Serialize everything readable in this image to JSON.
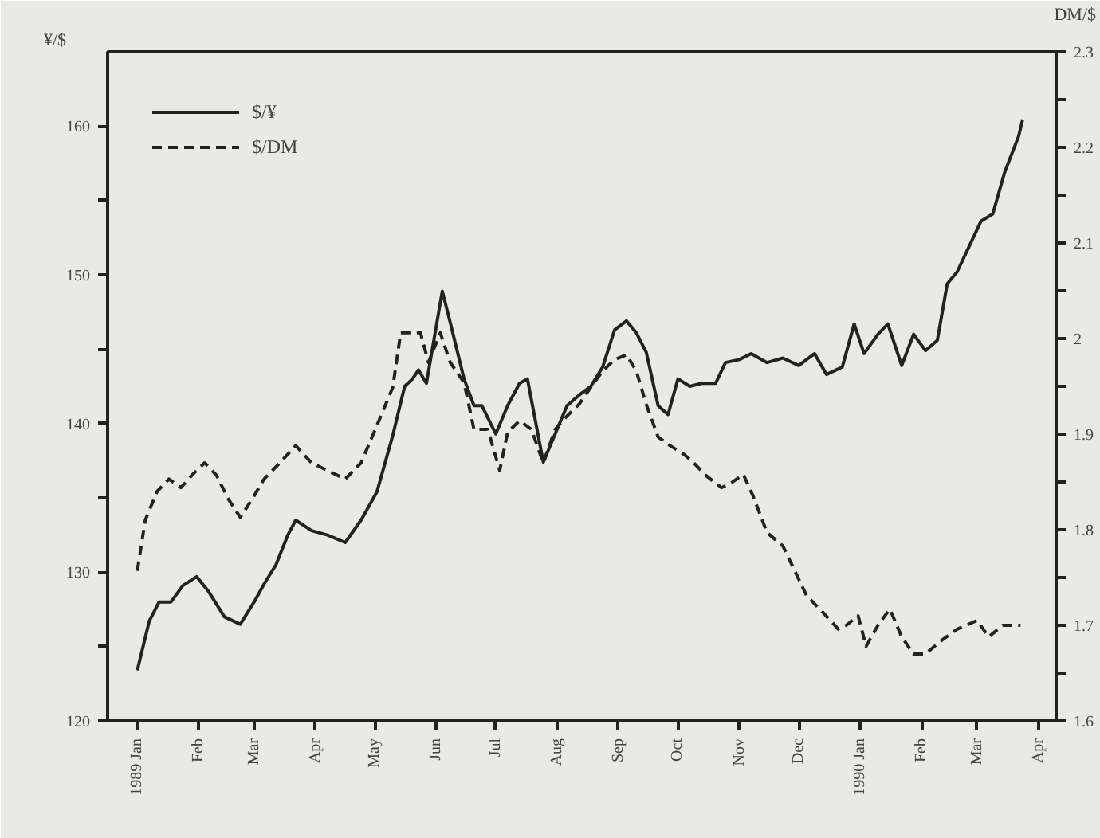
{
  "chart_data": {
    "type": "line",
    "ylabel": "¥/$",
    "y2label": "DM/$",
    "xlim": [
      "1988-12-17",
      "1990-04-10"
    ],
    "xticks": [
      {
        "value": "1989-01-01",
        "label": "1989 Jan"
      },
      {
        "value": "1989-02-01",
        "label": "Feb"
      },
      {
        "value": "1989-03-01",
        "label": "Mar"
      },
      {
        "value": "1989-04-01",
        "label": "Apr"
      },
      {
        "value": "1989-05-01",
        "label": "May"
      },
      {
        "value": "1989-06-01",
        "label": "Jun"
      },
      {
        "value": "1989-07-01",
        "label": "Jul"
      },
      {
        "value": "1989-08-01",
        "label": "Aug"
      },
      {
        "value": "1989-09-01",
        "label": "Sep"
      },
      {
        "value": "1989-10-01",
        "label": "Oct"
      },
      {
        "value": "1989-11-01",
        "label": "Nov"
      },
      {
        "value": "1989-12-01",
        "label": "Dec"
      },
      {
        "value": "1990-01-01",
        "label": "1990 Jan"
      },
      {
        "value": "1990-02-01",
        "label": "Feb"
      },
      {
        "value": "1990-03-01",
        "label": "Mar"
      },
      {
        "value": "1990-04-01",
        "label": "Apr"
      }
    ],
    "ylim": [
      120,
      165
    ],
    "yticks": [
      120,
      {
        "value": 125,
        "label": null
      },
      130,
      {
        "value": 135,
        "label": null
      },
      140,
      {
        "value": 145,
        "label": null
      },
      150,
      {
        "value": 155,
        "label": null
      },
      160
    ],
    "y2lim": [
      1.6,
      2.3
    ],
    "y2ticks": [
      1.6,
      {
        "value": 1.65,
        "label": null
      },
      1.7,
      {
        "value": 1.75,
        "label": null
      },
      1.8,
      {
        "value": 1.85,
        "label": null
      },
      1.9,
      {
        "value": 1.95,
        "label": null
      },
      2,
      {
        "value": 2.05,
        "label": null
      },
      2.1,
      {
        "value": 2.15,
        "label": null
      },
      2.2,
      {
        "value": 2.25,
        "label": null
      },
      2.3
    ],
    "grid": false,
    "legend": "top left",
    "marker": "none",
    "series": [
      {
        "name": "$/¥",
        "color": "#222222",
        "line_style": "solid",
        "x": [
          "1989-01-01",
          "1989-01-07",
          "1989-01-12",
          "1989-01-18",
          "1989-01-24",
          "1989-01-31",
          "1989-02-06",
          "1989-02-14",
          "1989-02-22",
          "1989-03-01",
          "1989-03-06",
          "1989-03-12",
          "1989-03-18",
          "1989-03-22",
          "1989-03-30",
          "1989-04-07",
          "1989-04-16",
          "1989-04-24",
          "1989-05-02",
          "1989-05-10",
          "1989-05-16",
          "1989-05-20",
          "1989-05-23",
          "1989-05-27",
          "1989-05-31",
          "1989-06-04",
          "1989-06-08",
          "1989-06-15",
          "1989-06-20",
          "1989-06-24",
          "1989-07-01",
          "1989-07-07",
          "1989-07-13",
          "1989-07-17",
          "1989-07-21",
          "1989-07-25",
          "1989-07-31",
          "1989-08-06",
          "1989-08-12",
          "1989-08-18",
          "1989-08-24",
          "1989-08-30",
          "1989-09-05",
          "1989-09-10",
          "1989-09-15",
          "1989-09-21",
          "1989-09-26",
          "1989-10-01",
          "1989-10-07",
          "1989-10-13",
          "1989-10-20",
          "1989-10-25",
          "1989-11-01",
          "1989-11-07",
          "1989-11-15",
          "1989-11-23",
          "1989-12-01",
          "1989-12-09",
          "1989-12-15",
          "1989-12-23",
          "1989-12-29",
          "1990-01-03",
          "1990-01-10",
          "1990-01-15",
          "1990-01-22",
          "1990-01-28",
          "1990-02-03",
          "1990-02-09",
          "1990-02-14",
          "1990-02-19",
          "1990-02-25",
          "1990-03-03",
          "1990-03-09",
          "1990-03-15",
          "1990-03-22",
          "1990-03-24"
        ],
        "values": [
          123.4,
          126.7,
          128,
          128,
          129.1,
          129.7,
          128.7,
          127,
          126.5,
          128,
          129.2,
          130.5,
          132.5,
          133.5,
          132.8,
          132.5,
          132,
          133.5,
          135.4,
          139.2,
          142.5,
          143,
          143.6,
          142.7,
          145.8,
          148.9,
          146.8,
          143,
          141.2,
          141.2,
          139.3,
          141.2,
          142.7,
          143,
          140.2,
          137.4,
          139.3,
          141.2,
          141.9,
          142.5,
          143.8,
          146.3,
          146.9,
          146.1,
          144.8,
          141.2,
          140.6,
          143,
          142.5,
          142.7,
          142.7,
          144.1,
          144.3,
          144.7,
          144.1,
          144.4,
          143.9,
          144.7,
          143.3,
          143.8,
          146.7,
          144.7,
          146,
          146.7,
          143.9,
          146,
          144.9,
          145.6,
          149.4,
          150.2,
          151.9,
          153.6,
          154.1,
          156.9,
          159.3,
          160.4
        ]
      },
      {
        "name": "$/DM",
        "color": "#222222",
        "line_style": "dashed",
        "axis": "y2",
        "x": [
          "1989-01-01",
          "1989-01-05",
          "1989-01-11",
          "1989-01-17",
          "1989-01-23",
          "1989-01-29",
          "1989-02-04",
          "1989-02-10",
          "1989-02-16",
          "1989-02-22",
          "1989-02-28",
          "1989-03-06",
          "1989-03-14",
          "1989-03-22",
          "1989-03-30",
          "1989-04-07",
          "1989-04-16",
          "1989-04-24",
          "1989-05-02",
          "1989-05-10",
          "1989-05-14",
          "1989-05-20",
          "1989-05-24",
          "1989-05-28",
          "1989-06-03",
          "1989-06-08",
          "1989-06-15",
          "1989-06-20",
          "1989-06-27",
          "1989-07-03",
          "1989-07-07",
          "1989-07-13",
          "1989-07-19",
          "1989-07-25",
          "1989-07-31",
          "1989-08-06",
          "1989-08-12",
          "1989-08-18",
          "1989-08-24",
          "1989-08-30",
          "1989-09-05",
          "1989-09-10",
          "1989-09-15",
          "1989-09-21",
          "1989-09-27",
          "1989-10-04",
          "1989-10-09",
          "1989-10-15",
          "1989-10-23",
          "1989-10-28",
          "1989-11-03",
          "1989-11-08",
          "1989-11-15",
          "1989-11-23",
          "1989-11-29",
          "1989-12-05",
          "1989-12-13",
          "1989-12-21",
          "1989-12-25",
          "1989-12-31",
          "1990-01-04",
          "1990-01-10",
          "1990-01-16",
          "1990-01-22",
          "1990-01-28",
          "1990-02-03",
          "1990-02-11",
          "1990-02-19",
          "1990-03-01",
          "1990-03-07",
          "1990-03-14",
          "1990-03-23"
        ],
        "values": [
          1.757,
          1.81,
          1.84,
          1.853,
          1.844,
          1.858,
          1.87,
          1.857,
          1.832,
          1.813,
          1.832,
          1.853,
          1.87,
          1.888,
          1.87,
          1.862,
          1.853,
          1.87,
          1.909,
          1.949,
          2.006,
          2.006,
          2.006,
          1.975,
          2.006,
          1.975,
          1.954,
          1.905,
          1.905,
          1.862,
          1.902,
          1.914,
          1.905,
          1.87,
          1.905,
          1.919,
          1.931,
          1.949,
          1.966,
          1.978,
          1.983,
          1.966,
          1.931,
          1.897,
          1.888,
          1.879,
          1.87,
          1.857,
          1.844,
          1.849,
          1.858,
          1.835,
          1.797,
          1.783,
          1.757,
          1.731,
          1.714,
          1.696,
          1.7,
          1.71,
          1.678,
          1.7,
          1.717,
          1.688,
          1.67,
          1.67,
          1.684,
          1.696,
          1.705,
          1.688,
          1.7,
          1.7
        ]
      }
    ]
  }
}
